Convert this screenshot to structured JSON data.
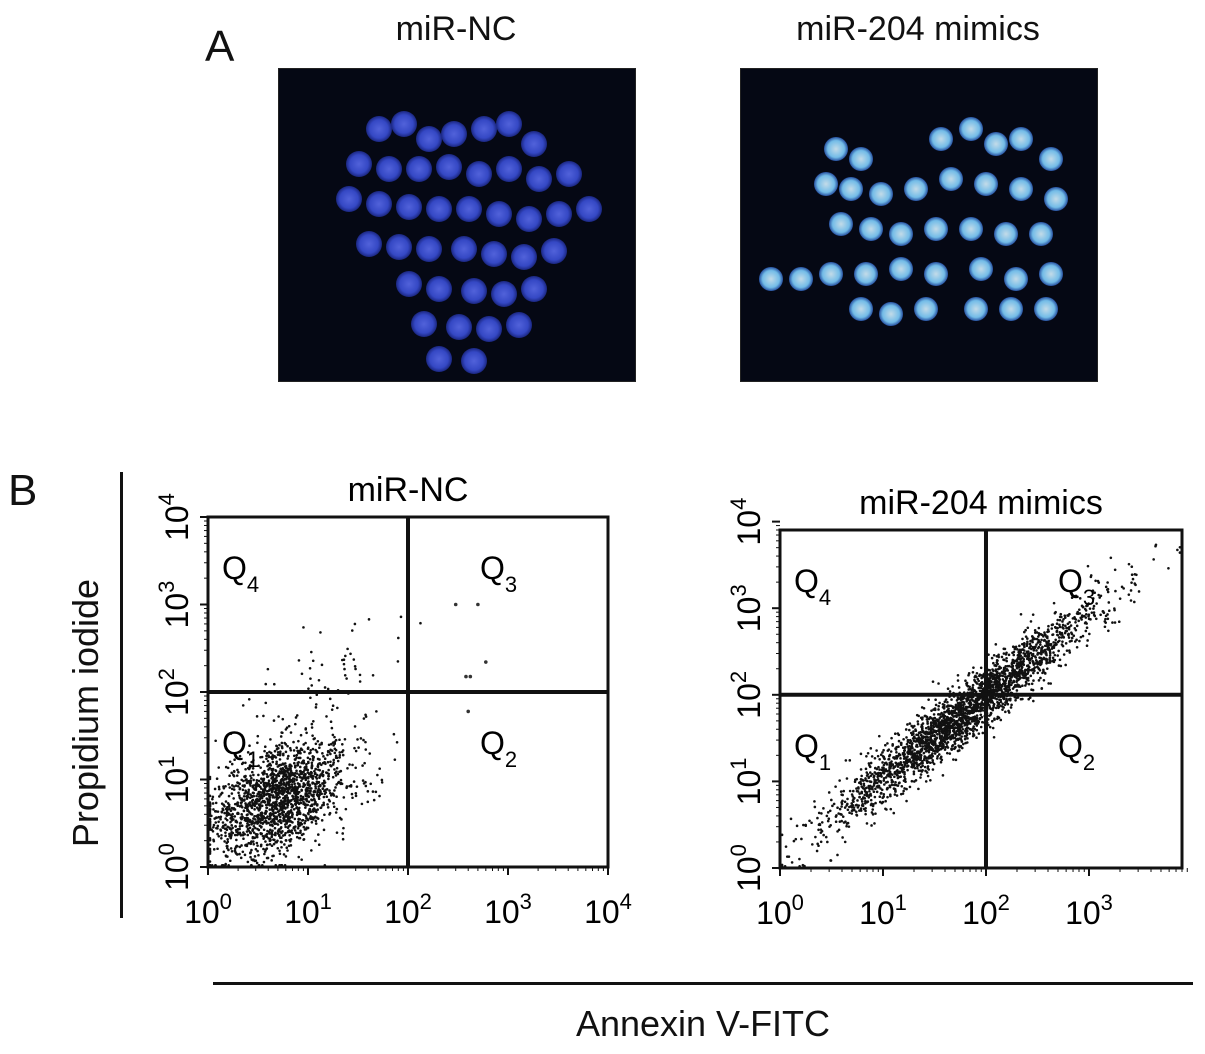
{
  "figure": {
    "panel_a": {
      "letter": "A",
      "images": [
        {
          "title": "miR-NC",
          "icon": "blue-nuclei-micrograph",
          "tint": "#3a4fd8"
        },
        {
          "title": "miR-204 mimics",
          "icon": "bright-nuclei-micrograph",
          "tint": "#7fd0ff"
        }
      ]
    },
    "panel_b": {
      "letter": "B",
      "ylabel": "Propidium iodide",
      "xlabel": "Annexin V-FITC"
    }
  },
  "chart_data": [
    {
      "type": "scatter",
      "title": "miR-NC",
      "xscale": "log",
      "yscale": "log",
      "xlim": [
        1,
        10000
      ],
      "ylim": [
        1,
        10000
      ],
      "xticks": [
        "10^0",
        "10^1",
        "10^2",
        "10^3",
        "10^4"
      ],
      "yticks": [
        "10^0",
        "10^1",
        "10^2",
        "10^3",
        "10^4"
      ],
      "quadrant_gate": {
        "x": 100,
        "y": 100
      },
      "quadrants": [
        {
          "label": "Q",
          "sub": "4"
        },
        {
          "label": "Q",
          "sub": "3"
        },
        {
          "label": "Q",
          "sub": "1"
        },
        {
          "label": "Q",
          "sub": "2"
        }
      ],
      "clusters": [
        {
          "center_x": 5,
          "center_y": 6,
          "spread_decades": 0.35,
          "count": 1800
        },
        {
          "center_x": 18,
          "center_y": 150,
          "spread_decades": 0.35,
          "count": 60
        }
      ],
      "outliers": [
        [
          300,
          1000
        ],
        [
          500,
          1000
        ],
        [
          600,
          220
        ],
        [
          400,
          60
        ],
        [
          380,
          150
        ],
        [
          420,
          150
        ]
      ]
    },
    {
      "type": "scatter",
      "title": "miR-204 mimics",
      "xscale": "log",
      "yscale": "log",
      "xlim": [
        1,
        8000
      ],
      "ylim": [
        1,
        8000
      ],
      "xticks": [
        "10^0",
        "10^1",
        "10^2",
        "10^3"
      ],
      "yticks": [
        "10^0",
        "10^1",
        "10^2",
        "10^3",
        "10^4"
      ],
      "quadrant_gate": {
        "x": 100,
        "y": 100
      },
      "quadrants": [
        {
          "label": "Q",
          "sub": "4"
        },
        {
          "label": "Q",
          "sub": "3"
        },
        {
          "label": "Q",
          "sub": "1"
        },
        {
          "label": "Q",
          "sub": "2"
        }
      ],
      "clusters": [
        {
          "center_x": 60,
          "center_y": 60,
          "spread_decades": 0.6,
          "count": 2600,
          "diagonal": true
        }
      ]
    }
  ]
}
